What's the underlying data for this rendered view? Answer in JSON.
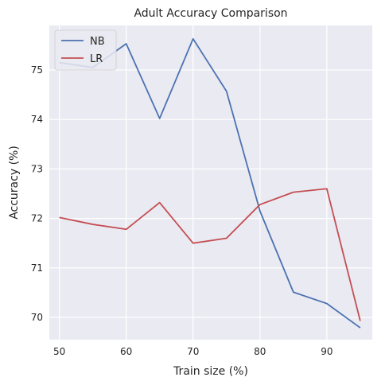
{
  "chart_data": {
    "type": "line",
    "title": "Adult Accuracy Comparison",
    "xlabel": "Train size (%)",
    "ylabel": "Accuracy (%)",
    "x": [
      50,
      55,
      60,
      65,
      70,
      75,
      80,
      85,
      90,
      95
    ],
    "xlim": [
      48.5,
      96.8
    ],
    "ylim": [
      69.55,
      75.9
    ],
    "xticks": [
      50,
      60,
      70,
      80,
      90
    ],
    "yticks": [
      70,
      71,
      72,
      73,
      74,
      75
    ],
    "grid": true,
    "legend_position": "top-left",
    "series": [
      {
        "name": "NB",
        "color": "#4c72b0",
        "values": [
          75.15,
          75.05,
          75.53,
          74.02,
          75.63,
          74.57,
          72.15,
          70.51,
          70.28,
          69.79
        ]
      },
      {
        "name": "LR",
        "color": "#c44e52",
        "values": [
          72.02,
          71.88,
          71.78,
          72.32,
          71.5,
          71.6,
          72.28,
          72.53,
          72.6,
          69.93
        ]
      }
    ],
    "background_color": "#eaeaf2",
    "grid_color": "#ffffff"
  }
}
